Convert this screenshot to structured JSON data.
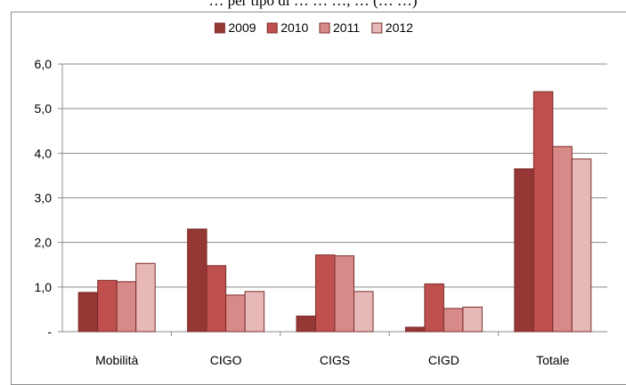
{
  "header_text": "… per tipo di … … …, … (… …)",
  "chart_data": {
    "type": "bar",
    "categories": [
      "Mobilità",
      "CIGO",
      "CIGS",
      "CIGD",
      "Totale"
    ],
    "series": [
      {
        "name": "2009",
        "color": "#953735",
        "values": [
          0.88,
          2.3,
          0.35,
          0.1,
          3.65
        ]
      },
      {
        "name": "2010",
        "color": "#c0504d",
        "values": [
          1.15,
          1.48,
          1.72,
          1.07,
          5.38
        ]
      },
      {
        "name": "2011",
        "color": "#d88a88",
        "values": [
          1.12,
          0.82,
          1.7,
          0.52,
          4.15
        ]
      },
      {
        "name": "2012",
        "color": "#e6b9b8",
        "values": [
          1.53,
          0.9,
          0.9,
          0.55,
          3.87
        ]
      }
    ],
    "yticks": [
      "-",
      "1,0",
      "2,0",
      "3,0",
      "4,0",
      "5,0",
      "6,0"
    ],
    "ylim": [
      0,
      6
    ],
    "grid": true,
    "legend_position": "top",
    "bar_outline_color": "#7a2c2a"
  }
}
